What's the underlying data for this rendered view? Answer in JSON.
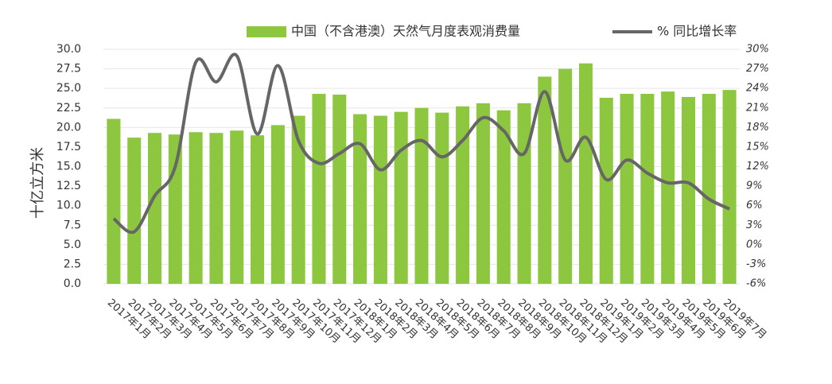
{
  "chart_data": {
    "type": "bar-line",
    "y_label": "十亿立方米",
    "categories": [
      "2017年1月",
      "2017年2月",
      "2017年3月",
      "2017年4月",
      "2017年5月",
      "2017年6月",
      "2017年7月",
      "2017年8月",
      "2017年9月",
      "2017年10月",
      "2017年11月",
      "2017年12月",
      "2018年1月",
      "2018年2月",
      "2018年3月",
      "2018年4月",
      "2018年5月",
      "2018年6月",
      "2018年7月",
      "2018年8月",
      "2018年9月",
      "2018年10月",
      "2018年11月",
      "2018年12月",
      "2019年1月",
      "2019年2月",
      "2019年3月",
      "2019年4月",
      "2019年5月",
      "2019年6月",
      "2019年7月"
    ],
    "series": [
      {
        "name": "中国（不含港澳）天然气月度表观消费量",
        "type": "bar",
        "color": "#8dc63f",
        "values": [
          21.1,
          18.7,
          19.3,
          19.1,
          19.4,
          19.3,
          19.6,
          19.0,
          20.3,
          21.5,
          24.3,
          24.2,
          21.7,
          21.5,
          22.0,
          22.5,
          21.9,
          22.7,
          23.1,
          22.2,
          23.1,
          26.5,
          27.5,
          28.2,
          23.8,
          24.3,
          24.3,
          24.6,
          23.9,
          24.3,
          24.8
        ]
      },
      {
        "name": "%  同比增长率",
        "type": "line",
        "color": "#666666",
        "axis": "y2",
        "values": [
          4,
          2,
          7.5,
          12,
          28,
          25,
          29,
          17,
          27.5,
          16,
          12.5,
          14,
          15.5,
          11.5,
          14.5,
          16,
          13.5,
          16,
          19.5,
          17.5,
          14,
          23.5,
          13,
          16.5,
          10,
          13,
          11,
          9.5,
          9.5,
          7,
          5.5
        ]
      }
    ],
    "ylim": [
      0,
      30
    ],
    "yticks": [
      {
        "value": 0,
        "label": "0.0"
      },
      2.5,
      {
        "value": 5,
        "label": "5.0"
      },
      7.5,
      {
        "value": 10,
        "label": "10.0"
      },
      12.5,
      {
        "value": 15,
        "label": "15.0"
      },
      17.5,
      {
        "value": 20,
        "label": "20.0"
      },
      22.5,
      {
        "value": 25,
        "label": "25.0"
      },
      27.5,
      {
        "value": 30,
        "label": "30.0"
      }
    ],
    "y2lim": [
      -6,
      30
    ],
    "y2ticks": [
      {
        "value": -6,
        "label": "-6%"
      },
      {
        "value": -3,
        "label": "-3%"
      },
      {
        "value": 0,
        "label": "0%"
      },
      {
        "value": 3,
        "label": "3%"
      },
      {
        "value": 6,
        "label": "6%"
      },
      {
        "value": 9,
        "label": "9%"
      },
      {
        "value": 12,
        "label": "12%"
      },
      {
        "value": 15,
        "label": "15%"
      },
      {
        "value": 18,
        "label": "18%"
      },
      {
        "value": 21,
        "label": "21%"
      },
      {
        "value": 24,
        "label": "24%"
      },
      {
        "value": 27,
        "label": "27%"
      },
      {
        "value": 30,
        "label": "30%"
      }
    ],
    "grid": true
  }
}
